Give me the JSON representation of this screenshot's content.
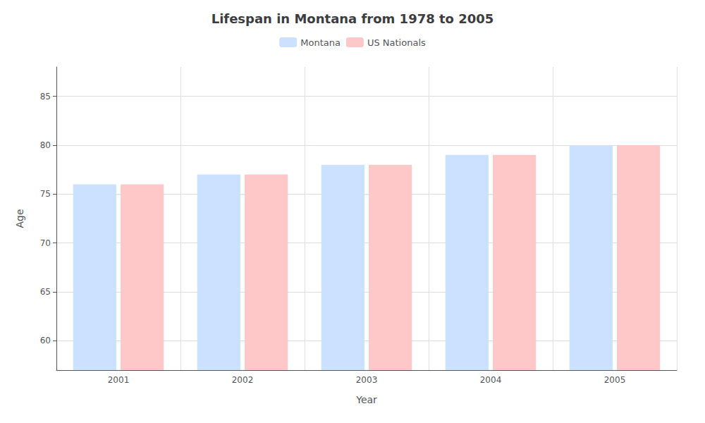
{
  "chart_data": {
    "type": "bar",
    "title": "Lifespan in Montana from 1978 to 2005",
    "x_label": "Year",
    "y_label": "Age",
    "categories": [
      "2001",
      "2002",
      "2003",
      "2004",
      "2005"
    ],
    "series": [
      {
        "name": "Montana",
        "color": "#cce0ff",
        "values": [
          76,
          77,
          78,
          79,
          80
        ]
      },
      {
        "name": "US Nationals",
        "color": "#ffc8c8",
        "values": [
          76,
          77,
          78,
          79,
          80
        ]
      }
    ],
    "ylim": [
      57,
      88
    ],
    "yticks": [
      60,
      65,
      70,
      75,
      80,
      85
    ],
    "grid": true,
    "legend": "upper center"
  }
}
